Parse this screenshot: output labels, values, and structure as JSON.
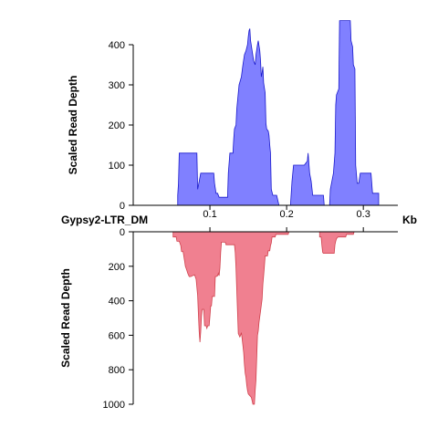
{
  "chart_data": {
    "type": "area",
    "element_label": "Gypsy2-LTR_DM",
    "x_unit": "Kb",
    "x_ticks": [
      0.1,
      0.2,
      0.3
    ],
    "xlim": [
      0.0,
      0.345
    ],
    "panels": [
      {
        "id": "top",
        "ylabel": "Scaled Read Depth",
        "ylim": [
          0,
          440
        ],
        "y_ticks": [
          0,
          100,
          200,
          300,
          400
        ],
        "orientation": "up",
        "color": "#8080ff",
        "stroke": "#1a1acc",
        "series": [
          [
            0.058,
            0
          ],
          [
            0.058,
            25
          ],
          [
            0.059,
            55
          ],
          [
            0.06,
            130
          ],
          [
            0.07,
            130
          ],
          [
            0.083,
            130
          ],
          [
            0.084,
            40
          ],
          [
            0.088,
            80
          ],
          [
            0.1,
            80
          ],
          [
            0.105,
            80
          ],
          [
            0.106,
            55
          ],
          [
            0.108,
            30
          ],
          [
            0.11,
            30
          ],
          [
            0.112,
            20
          ],
          [
            0.123,
            20
          ],
          [
            0.124,
            80
          ],
          [
            0.126,
            130
          ],
          [
            0.13,
            130
          ],
          [
            0.131,
            165
          ],
          [
            0.132,
            190
          ],
          [
            0.134,
            200
          ],
          [
            0.135,
            240
          ],
          [
            0.138,
            300
          ],
          [
            0.141,
            320
          ],
          [
            0.143,
            350
          ],
          [
            0.145,
            375
          ],
          [
            0.147,
            385
          ],
          [
            0.149,
            400
          ],
          [
            0.15,
            420
          ],
          [
            0.151,
            435
          ],
          [
            0.152,
            440
          ],
          [
            0.153,
            410
          ],
          [
            0.155,
            385
          ],
          [
            0.157,
            360
          ],
          [
            0.159,
            350
          ],
          [
            0.16,
            375
          ],
          [
            0.162,
            400
          ],
          [
            0.163,
            410
          ],
          [
            0.165,
            385
          ],
          [
            0.166,
            360
          ],
          [
            0.167,
            320
          ],
          [
            0.168,
            330
          ],
          [
            0.169,
            345
          ],
          [
            0.17,
            305
          ],
          [
            0.172,
            280
          ],
          [
            0.173,
            205
          ],
          [
            0.174,
            190
          ],
          [
            0.176,
            185
          ],
          [
            0.177,
            175
          ],
          [
            0.178,
            150
          ],
          [
            0.179,
            130
          ],
          [
            0.18,
            40
          ],
          [
            0.182,
            25
          ],
          [
            0.187,
            25
          ],
          [
            0.19,
            0
          ],
          [
            0.205,
            0
          ],
          [
            0.207,
            60
          ],
          [
            0.209,
            100
          ],
          [
            0.214,
            100
          ],
          [
            0.223,
            100
          ],
          [
            0.225,
            105
          ],
          [
            0.227,
            110
          ],
          [
            0.228,
            130
          ],
          [
            0.23,
            80
          ],
          [
            0.232,
            60
          ],
          [
            0.234,
            25
          ],
          [
            0.248,
            25
          ],
          [
            0.249,
            0
          ],
          [
            0.256,
            0
          ],
          [
            0.257,
            40
          ],
          [
            0.261,
            80
          ],
          [
            0.263,
            130
          ],
          [
            0.264,
            250
          ],
          [
            0.265,
            275
          ],
          [
            0.268,
            290
          ],
          [
            0.269,
            460
          ],
          [
            0.283,
            460
          ],
          [
            0.284,
            410
          ],
          [
            0.286,
            395
          ],
          [
            0.287,
            350
          ],
          [
            0.289,
            340
          ],
          [
            0.29,
            100
          ],
          [
            0.292,
            55
          ],
          [
            0.294,
            55
          ],
          [
            0.296,
            80
          ],
          [
            0.31,
            80
          ],
          [
            0.311,
            55
          ],
          [
            0.312,
            30
          ],
          [
            0.32,
            30
          ],
          [
            0.32,
            0
          ]
        ]
      },
      {
        "id": "bottom",
        "ylabel": "Scaled Read Depth",
        "ylim": [
          0,
          1000
        ],
        "y_ticks": [
          0,
          200,
          400,
          600,
          800,
          1000
        ],
        "orientation": "down",
        "color": "#f08090",
        "stroke": "#d0404c",
        "series": [
          [
            0.052,
            0
          ],
          [
            0.052,
            30
          ],
          [
            0.056,
            30
          ],
          [
            0.057,
            55
          ],
          [
            0.06,
            55
          ],
          [
            0.062,
            80
          ],
          [
            0.063,
            115
          ],
          [
            0.065,
            115
          ],
          [
            0.067,
            170
          ],
          [
            0.068,
            200
          ],
          [
            0.07,
            225
          ],
          [
            0.071,
            240
          ],
          [
            0.073,
            260
          ],
          [
            0.075,
            260
          ],
          [
            0.077,
            255
          ],
          [
            0.08,
            250
          ],
          [
            0.082,
            275
          ],
          [
            0.084,
            370
          ],
          [
            0.085,
            480
          ],
          [
            0.086,
            580
          ],
          [
            0.087,
            640
          ],
          [
            0.088,
            580
          ],
          [
            0.089,
            490
          ],
          [
            0.09,
            450
          ],
          [
            0.092,
            450
          ],
          [
            0.093,
            545
          ],
          [
            0.095,
            545
          ],
          [
            0.096,
            560
          ],
          [
            0.097,
            545
          ],
          [
            0.099,
            545
          ],
          [
            0.1,
            490
          ],
          [
            0.101,
            430
          ],
          [
            0.102,
            430
          ],
          [
            0.103,
            375
          ],
          [
            0.106,
            375
          ],
          [
            0.107,
            260
          ],
          [
            0.108,
            260
          ],
          [
            0.11,
            255
          ],
          [
            0.111,
            240
          ],
          [
            0.112,
            255
          ],
          [
            0.113,
            210
          ],
          [
            0.114,
            120
          ],
          [
            0.115,
            60
          ],
          [
            0.12,
            60
          ],
          [
            0.121,
            75
          ],
          [
            0.132,
            75
          ],
          [
            0.133,
            120
          ],
          [
            0.134,
            210
          ],
          [
            0.135,
            340
          ],
          [
            0.137,
            590
          ],
          [
            0.139,
            610
          ],
          [
            0.14,
            600
          ],
          [
            0.141,
            585
          ],
          [
            0.142,
            620
          ],
          [
            0.144,
            700
          ],
          [
            0.145,
            770
          ],
          [
            0.146,
            820
          ],
          [
            0.147,
            845
          ],
          [
            0.148,
            890
          ],
          [
            0.149,
            920
          ],
          [
            0.15,
            940
          ],
          [
            0.152,
            950
          ],
          [
            0.154,
            960
          ],
          [
            0.155,
            980
          ],
          [
            0.156,
            1000
          ],
          [
            0.158,
            1000
          ],
          [
            0.159,
            920
          ],
          [
            0.16,
            860
          ],
          [
            0.162,
            600
          ],
          [
            0.163,
            575
          ],
          [
            0.164,
            525
          ],
          [
            0.166,
            460
          ],
          [
            0.168,
            390
          ],
          [
            0.169,
            305
          ],
          [
            0.17,
            255
          ],
          [
            0.171,
            200
          ],
          [
            0.172,
            140
          ],
          [
            0.175,
            140
          ],
          [
            0.176,
            110
          ],
          [
            0.178,
            110
          ],
          [
            0.179,
            80
          ],
          [
            0.18,
            65
          ],
          [
            0.181,
            30
          ],
          [
            0.185,
            30
          ],
          [
            0.186,
            15
          ],
          [
            0.19,
            15
          ],
          [
            0.192,
            15
          ],
          [
            0.202,
            15
          ],
          [
            0.203,
            0
          ],
          [
            0.243,
            0
          ],
          [
            0.243,
            30
          ],
          [
            0.245,
            30
          ],
          [
            0.246,
            80
          ],
          [
            0.247,
            120
          ],
          [
            0.248,
            125
          ],
          [
            0.262,
            125
          ],
          [
            0.263,
            75
          ],
          [
            0.264,
            55
          ],
          [
            0.265,
            40
          ],
          [
            0.267,
            30
          ],
          [
            0.277,
            30
          ],
          [
            0.278,
            15
          ],
          [
            0.287,
            15
          ],
          [
            0.288,
            0
          ]
        ]
      }
    ]
  }
}
